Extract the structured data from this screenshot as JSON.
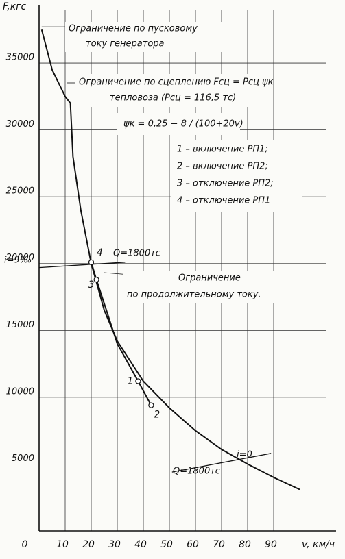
{
  "chart_data": {
    "type": "line",
    "y_label": "F,кгс",
    "x_label": "v, км/ч",
    "xlim": [
      0,
      110
    ],
    "ylim": [
      0,
      39000
    ],
    "xticks": [
      0,
      10,
      20,
      30,
      40,
      50,
      60,
      70,
      80,
      90
    ],
    "yticks": [
      5000,
      10000,
      15000,
      20000,
      25000,
      30000,
      35000
    ],
    "grid": true,
    "series": [
      {
        "color": "#111111",
        "x": [
          1,
          5,
          10,
          12,
          13,
          16,
          20,
          25,
          30,
          40,
          50,
          60,
          70,
          80,
          90,
          100
        ],
        "values": [
          37500,
          34500,
          32500,
          32000,
          28000,
          24000,
          20000,
          16500,
          14200,
          11200,
          9200,
          7500,
          6100,
          5000,
          4000,
          3100
        ]
      },
      {
        "color": "#111111",
        "x": [
          20,
          22,
          30,
          38,
          43
        ],
        "values": [
          20100,
          18800,
          14000,
          11200,
          9400
        ]
      },
      {
        "color": "#111111",
        "x": [
          1,
          10
        ],
        "values": [
          37700,
          37700
        ]
      },
      {
        "color": "#111111",
        "x": [
          0,
          33
        ],
        "values": [
          19700,
          20100
        ]
      },
      {
        "color": "#111111",
        "x": [
          51,
          89
        ],
        "values": [
          4400,
          5800
        ]
      }
    ],
    "points": [
      {
        "label": "1",
        "x": 38,
        "y": 11200
      },
      {
        "label": "2",
        "x": 43,
        "y": 9400
      },
      {
        "label": "3",
        "x": 22,
        "y": 18800
      },
      {
        "label": "4",
        "x": 20,
        "y": 20100
      }
    ],
    "annotations": [
      "Ограничение по пусковому",
      "току генератора",
      "Ограничение по сцеплению Fсц = Pсц ψк",
      "тепловоза (Pсц = 116,5 тс)",
      "ψк = 0,25 − 8 / (100+20v)",
      "1 – включение РП1;",
      "2 – включение РП2;",
      "3 – отключение РП2;",
      "4 – отключение РП1",
      "i=9‰",
      "Q=1800тс",
      "Ограничение",
      "по продолжительному току.",
      "Q=1800тс",
      "i=0"
    ]
  }
}
